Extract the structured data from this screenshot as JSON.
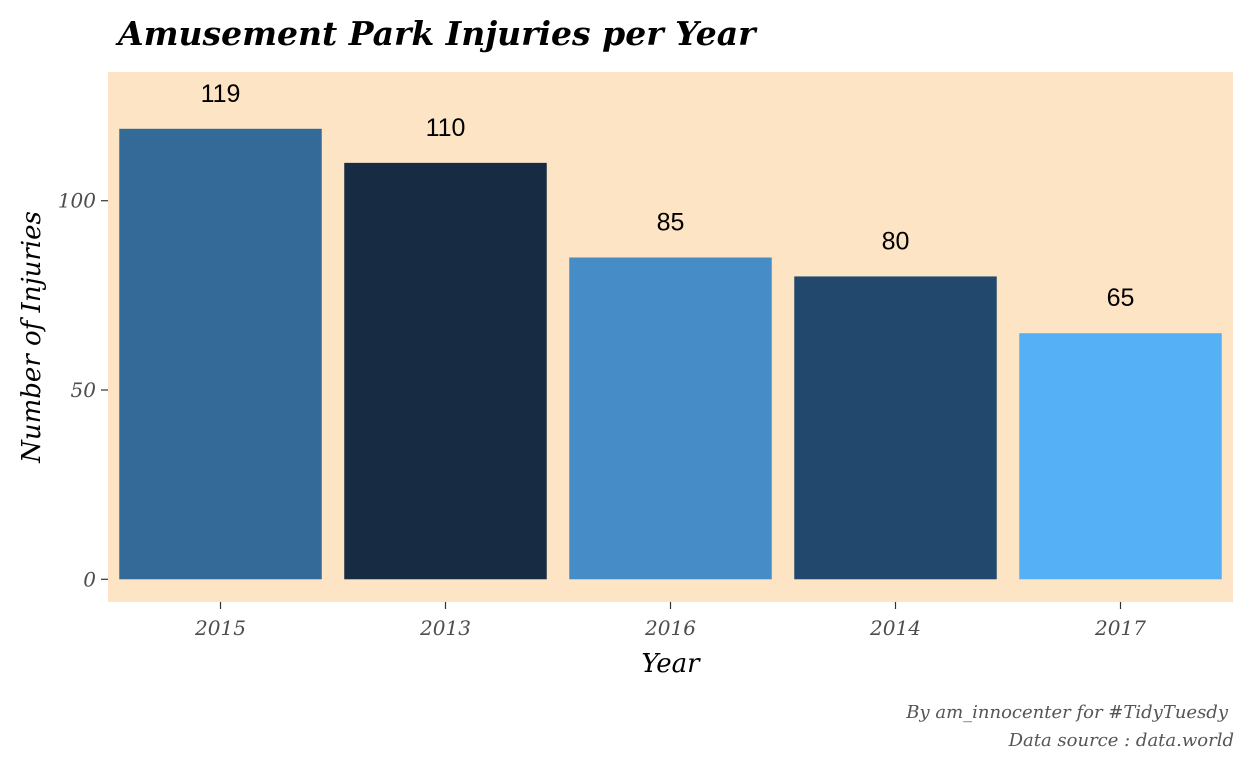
{
  "chart_data": {
    "type": "bar",
    "title": "Amusement Park Injuries per Year",
    "xlabel": "Year",
    "ylabel": "Number of Injuries",
    "categories": [
      "2015",
      "2013",
      "2016",
      "2014",
      "2017"
    ],
    "values": [
      119,
      110,
      85,
      80,
      65
    ],
    "bar_colors": [
      "#336A98",
      "#172B42",
      "#468CC7",
      "#22496D",
      "#56B0F6"
    ],
    "ylim": [
      -6,
      134
    ],
    "y_ticks": [
      0,
      50,
      100
    ],
    "grid": false,
    "legend": "none",
    "panel_background": "#FDE4C4",
    "caption": [
      "By am_innocenter for #TidyTuesdy",
      "Data source : data.world"
    ]
  }
}
